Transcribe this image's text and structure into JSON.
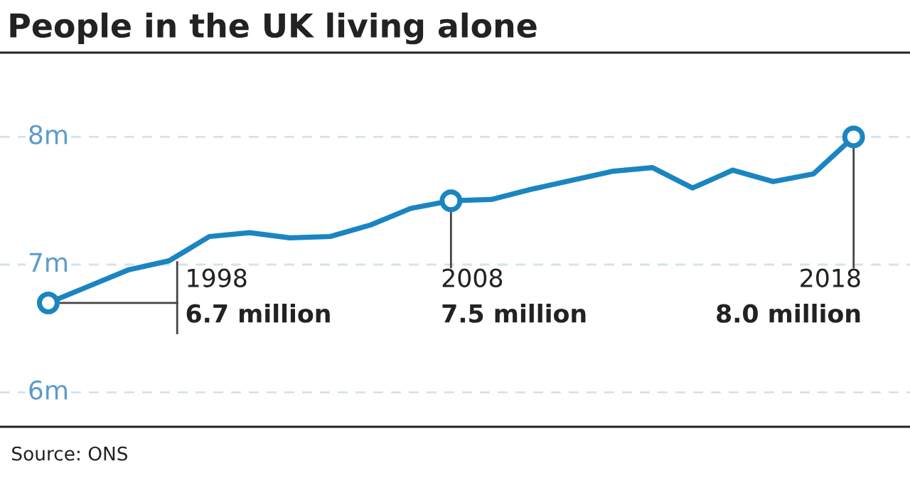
{
  "chart_data": {
    "type": "line",
    "title": "People in the UK living alone",
    "categories": [
      null,
      null,
      null,
      null,
      null,
      null,
      null,
      null,
      null,
      null,
      null,
      null,
      null,
      null,
      null,
      null,
      null,
      null,
      null,
      null,
      null
    ],
    "series": [
      {
        "color": "#1a85c1",
        "values": [
          6.7,
          6.83,
          6.96,
          7.03,
          7.22,
          7.25,
          7.21,
          7.22,
          7.31,
          7.44,
          7.5,
          7.51,
          7.59,
          7.66,
          7.73,
          7.76,
          7.6,
          7.74,
          7.65,
          7.71,
          8.0
        ]
      }
    ],
    "ylim": [
      5.73,
      8.66
    ],
    "yticks": [
      {
        "value": 6,
        "label": "6m"
      },
      {
        "value": 7,
        "label": "7m"
      },
      {
        "value": 8,
        "label": "8m"
      }
    ],
    "grid": "y",
    "tick_labels": "y",
    "annotations": [
      "1998",
      "6.7 million",
      "2008",
      "7.5 million",
      "2018",
      "8.0 million",
      "Source: ONS"
    ]
  }
}
